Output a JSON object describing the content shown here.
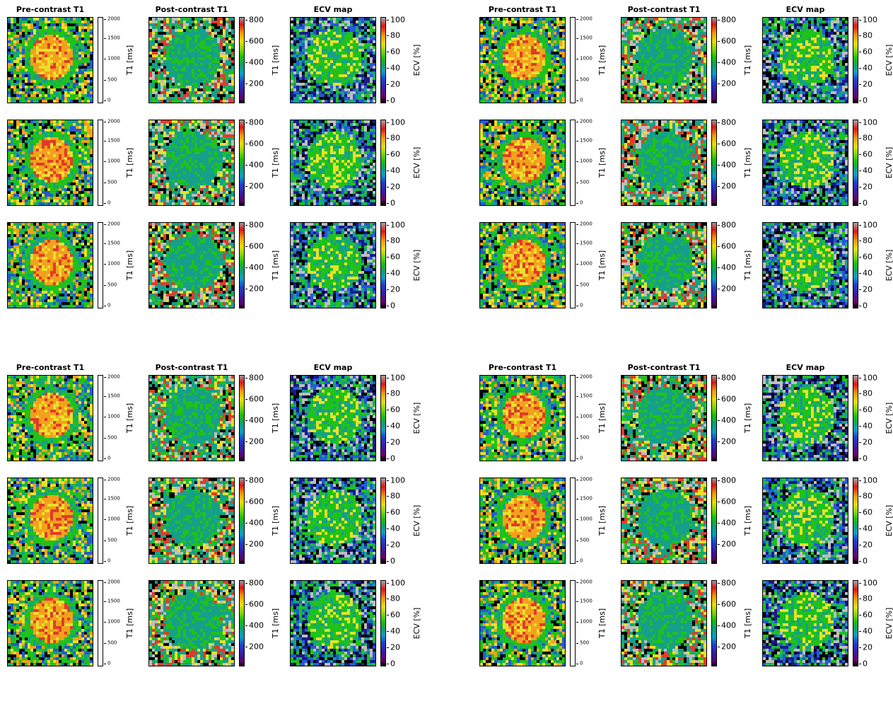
{
  "titles": {
    "pre": "Pre-contrast T1",
    "post": "Post-contrast T1",
    "ecv": "ECV map"
  },
  "colorbars": {
    "pre": {
      "label": "T1 [ms]",
      "ticks": [
        "2000",
        "1500",
        "1000",
        "500",
        "0"
      ]
    },
    "post": {
      "label": "T1 [ms]",
      "ticks": [
        "800",
        "600",
        "400",
        "200"
      ]
    },
    "ecv": {
      "label": "ECV [%]",
      "ticks": [
        "100",
        "80",
        "60",
        "40",
        "20",
        "0"
      ]
    }
  },
  "layout_groups": [
    "top-left",
    "top-right",
    "bottom-left",
    "bottom-right"
  ],
  "colors": {
    "gray": "#bdbdbd",
    "green": "#1fc21a",
    "teal": "#15a08a",
    "yellow": "#e9e02a",
    "orange": "#f2a11c",
    "red": "#e23a2a",
    "blue": "#2459d6",
    "navy": "#1a1a8c",
    "black": "#000000"
  }
}
